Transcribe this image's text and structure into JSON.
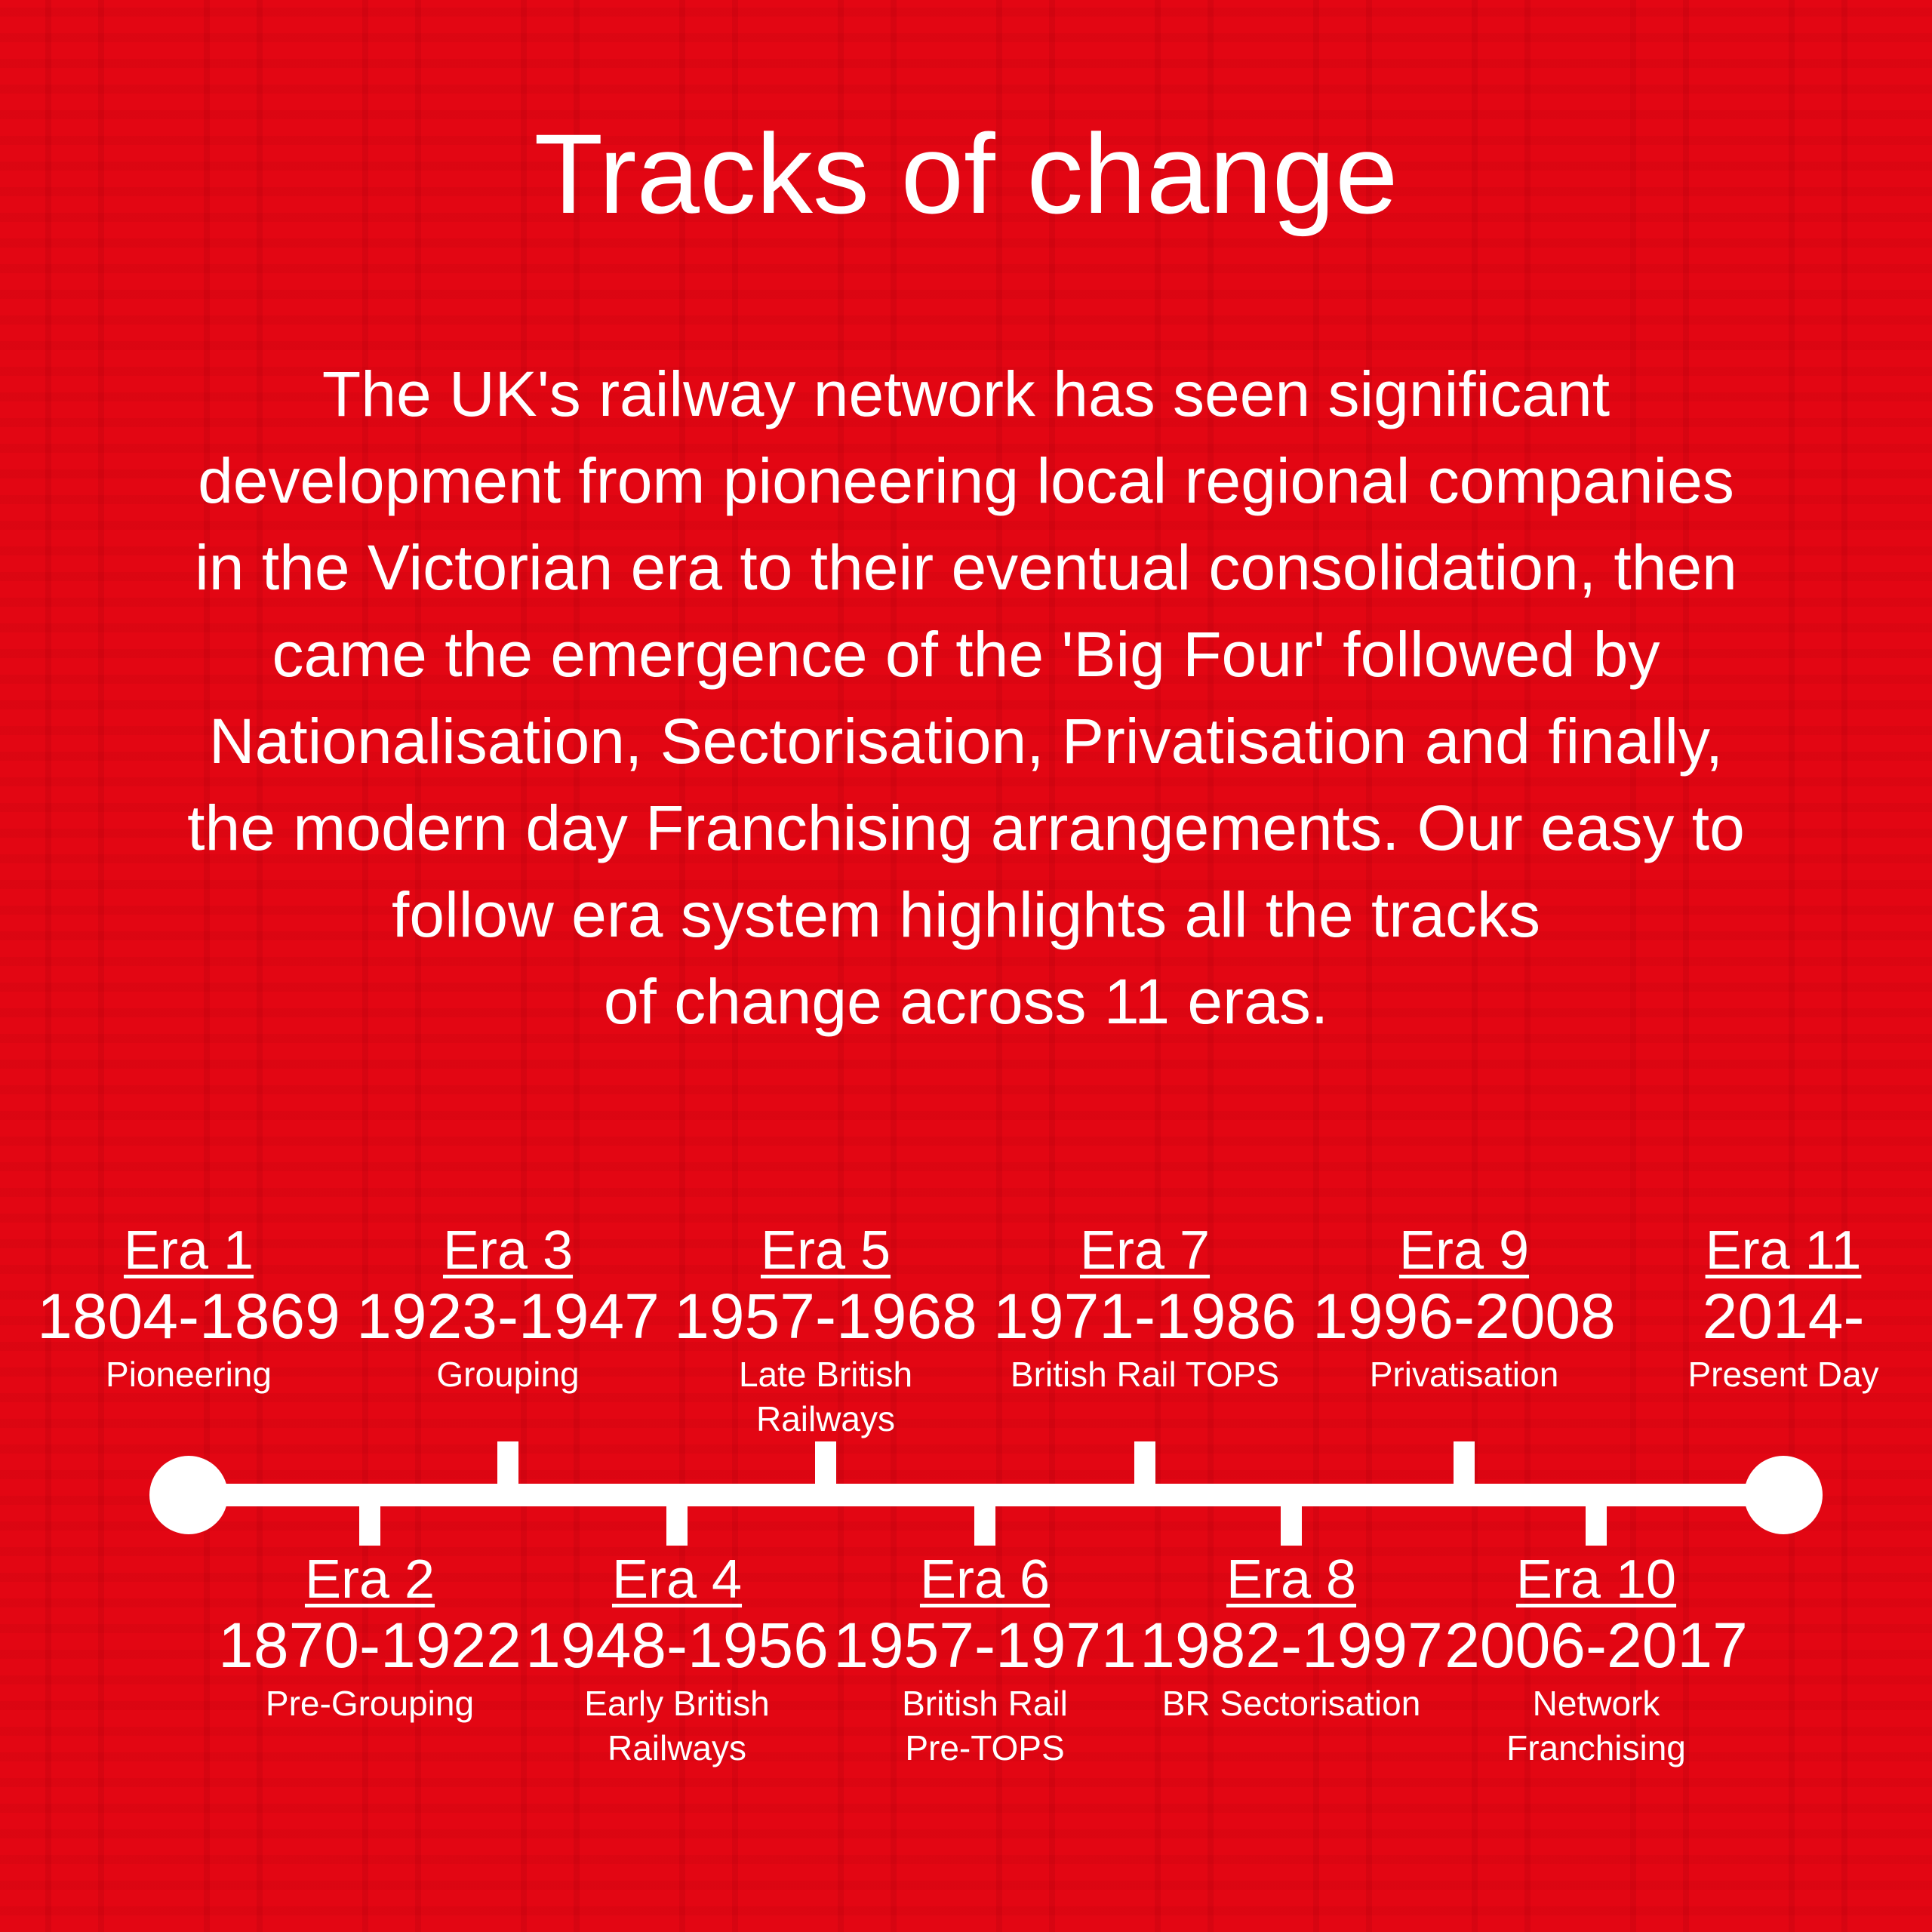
{
  "title": "Tracks of change",
  "intro_lines": [
    "The UK's railway network has seen significant",
    "development from pioneering local regional companies",
    "in the Victorian era to their eventual consolidation, then",
    "came the emergence of the 'Big Four' followed by",
    "Nationalisation, Sectorisation, Privatisation and finally,",
    "the modern day Franchising arrangements. Our easy to",
    "follow era system highlights all the tracks",
    "of change across 11 eras."
  ],
  "colors": {
    "background": "#e30613",
    "foreground": "#ffffff"
  },
  "eras": [
    {
      "name": "Era 1",
      "years": "1804-1869",
      "sub": [
        "Pioneering"
      ]
    },
    {
      "name": "Era 2",
      "years": "1870-1922",
      "sub": [
        "Pre-Grouping"
      ]
    },
    {
      "name": "Era 3",
      "years": "1923-1947",
      "sub": [
        "Grouping"
      ]
    },
    {
      "name": "Era 4",
      "years": "1948-1956",
      "sub": [
        "Early British",
        "Railways"
      ]
    },
    {
      "name": "Era 5",
      "years": "1957-1968",
      "sub": [
        "Late British",
        "Railways"
      ]
    },
    {
      "name": "Era 6",
      "years": "1957-1971",
      "sub": [
        "British Rail",
        "Pre-TOPS"
      ]
    },
    {
      "name": "Era 7",
      "years": "1971-1986",
      "sub": [
        "British Rail TOPS"
      ]
    },
    {
      "name": "Era 8",
      "years": "1982-1997",
      "sub": [
        "BR Sectorisation"
      ]
    },
    {
      "name": "Era 9",
      "years": "1996-2008",
      "sub": [
        "Privatisation"
      ]
    },
    {
      "name": "Era 10",
      "years": "2006-2017",
      "sub": [
        "Network",
        "Franchising"
      ]
    },
    {
      "name": "Era 11",
      "years": "2014-",
      "sub": [
        "Present Day"
      ]
    }
  ]
}
